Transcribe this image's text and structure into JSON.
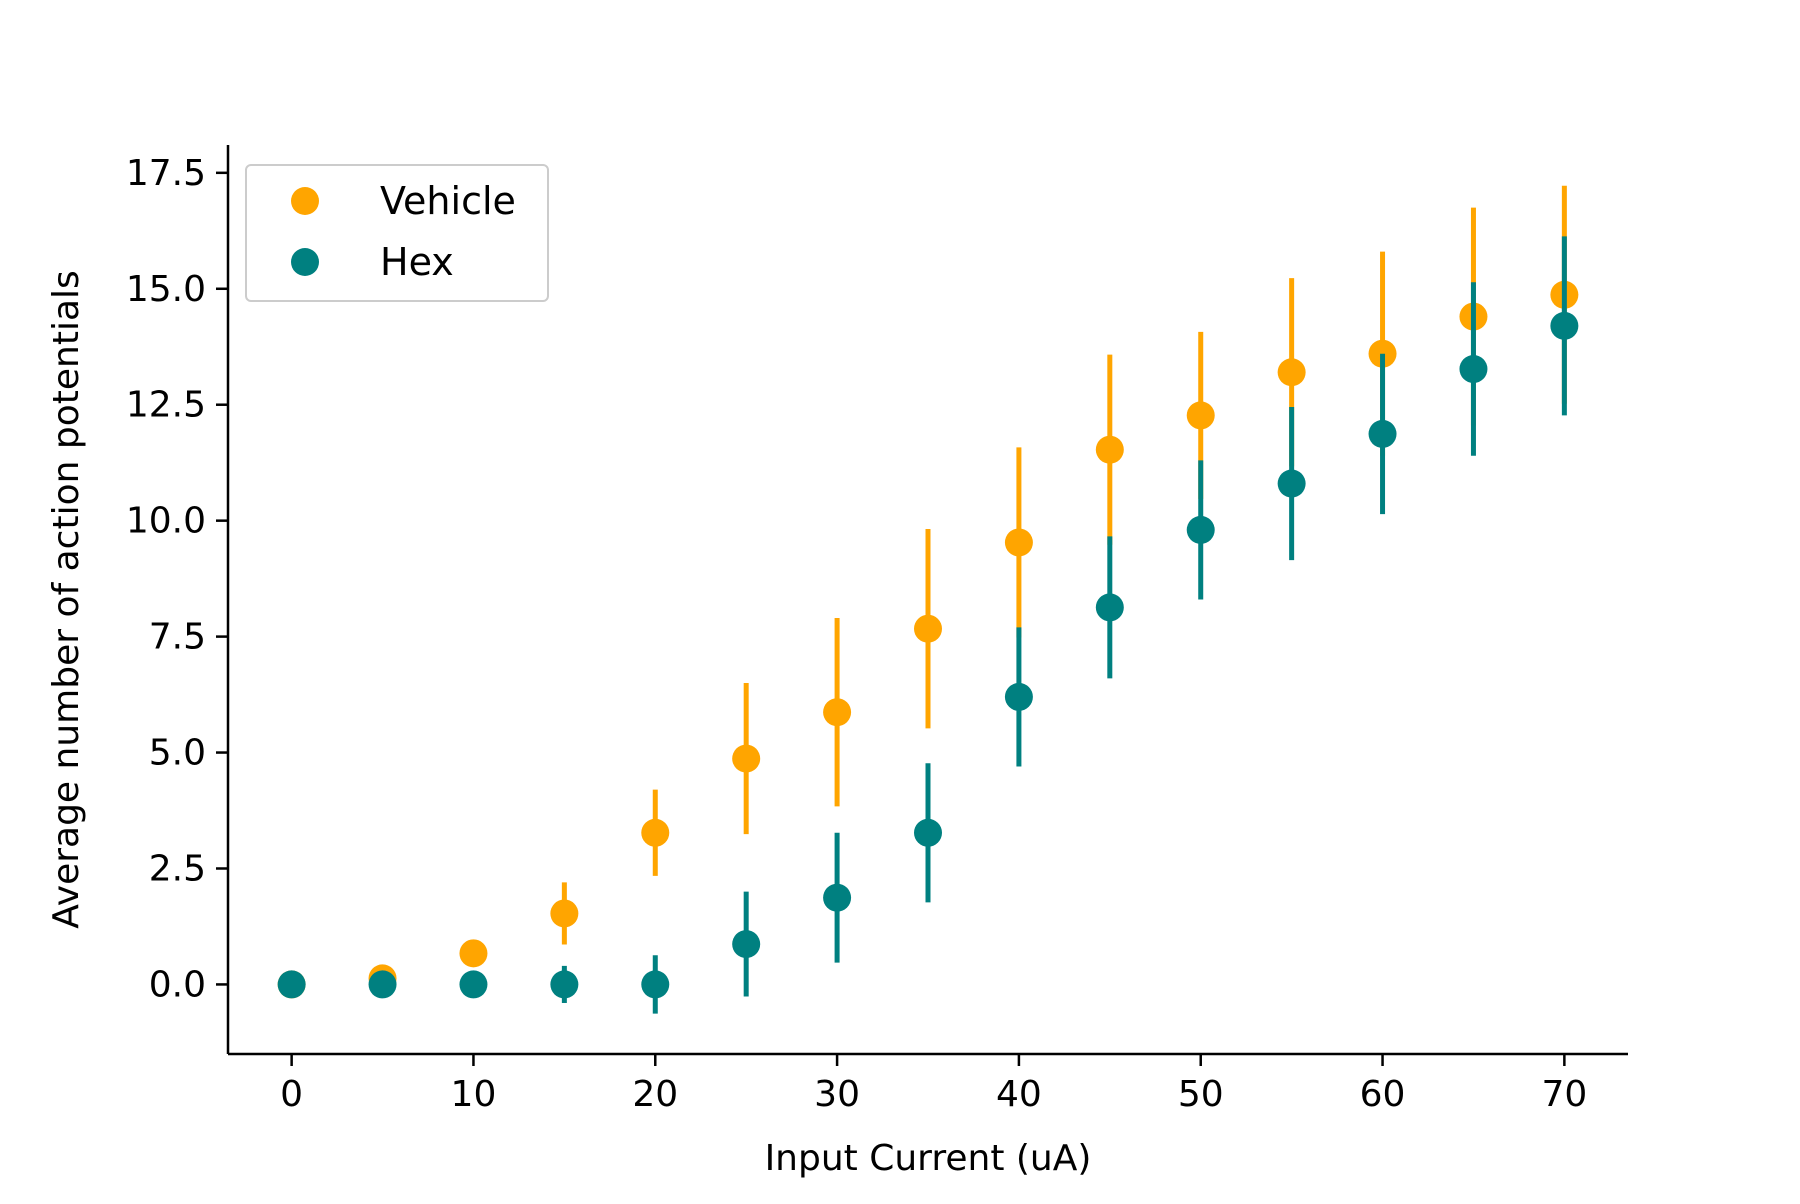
{
  "chart_data": {
    "type": "scatter",
    "title": "",
    "xlabel": "Input Current (uA)",
    "ylabel": "Average number of action potentials",
    "xlim": [
      -3.5,
      73.5
    ],
    "ylim": [
      -1.5,
      18.1
    ],
    "xticks": [
      0,
      10,
      20,
      30,
      40,
      50,
      60,
      70
    ],
    "xtick_labels": [
      "0",
      "10",
      "20",
      "30",
      "40",
      "50",
      "60",
      "70"
    ],
    "yticks": [
      0,
      2.5,
      5,
      7.5,
      10,
      12.5,
      15,
      17.5
    ],
    "ytick_labels": [
      "0.0",
      "2.5",
      "5.0",
      "7.5",
      "10.0",
      "12.5",
      "15.0",
      "17.5"
    ],
    "grid": false,
    "legend_position": "top-left",
    "error_bars": true,
    "series": [
      {
        "name": "Vehicle",
        "color": "#FFA500",
        "points": [
          {
            "x": 0,
            "y": 0.0,
            "err": 0.0
          },
          {
            "x": 5,
            "y": 0.13,
            "err": 0.0
          },
          {
            "x": 10,
            "y": 0.67,
            "err": 0.0
          },
          {
            "x": 15,
            "y": 1.53,
            "err": 0.67
          },
          {
            "x": 20,
            "y": 3.27,
            "err": 0.93
          },
          {
            "x": 25,
            "y": 4.87,
            "err": 1.63
          },
          {
            "x": 30,
            "y": 5.87,
            "err": 2.03
          },
          {
            "x": 35,
            "y": 7.67,
            "err": 2.15
          },
          {
            "x": 40,
            "y": 9.53,
            "err": 2.05
          },
          {
            "x": 45,
            "y": 11.53,
            "err": 2.05
          },
          {
            "x": 50,
            "y": 12.27,
            "err": 1.8
          },
          {
            "x": 55,
            "y": 13.2,
            "err": 2.03
          },
          {
            "x": 60,
            "y": 13.6,
            "err": 2.2
          },
          {
            "x": 65,
            "y": 14.4,
            "err": 2.35
          },
          {
            "x": 70,
            "y": 14.87,
            "err": 2.35
          }
        ]
      },
      {
        "name": "Hex",
        "color": "#008080",
        "points": [
          {
            "x": 0,
            "y": 0.0,
            "err": 0.0
          },
          {
            "x": 5,
            "y": 0.0,
            "err": 0.0
          },
          {
            "x": 10,
            "y": 0.0,
            "err": 0.0
          },
          {
            "x": 15,
            "y": 0.0,
            "err": 0.4
          },
          {
            "x": 20,
            "y": 0.0,
            "err": 0.63
          },
          {
            "x": 25,
            "y": 0.87,
            "err": 1.13
          },
          {
            "x": 30,
            "y": 1.87,
            "err": 1.4
          },
          {
            "x": 35,
            "y": 3.27,
            "err": 1.5
          },
          {
            "x": 40,
            "y": 6.2,
            "err": 1.5
          },
          {
            "x": 45,
            "y": 8.13,
            "err": 1.53
          },
          {
            "x": 50,
            "y": 9.8,
            "err": 1.5
          },
          {
            "x": 55,
            "y": 10.8,
            "err": 1.65
          },
          {
            "x": 60,
            "y": 11.87,
            "err": 1.73
          },
          {
            "x": 65,
            "y": 13.27,
            "err": 1.87
          },
          {
            "x": 70,
            "y": 14.2,
            "err": 1.93
          }
        ]
      }
    ]
  }
}
